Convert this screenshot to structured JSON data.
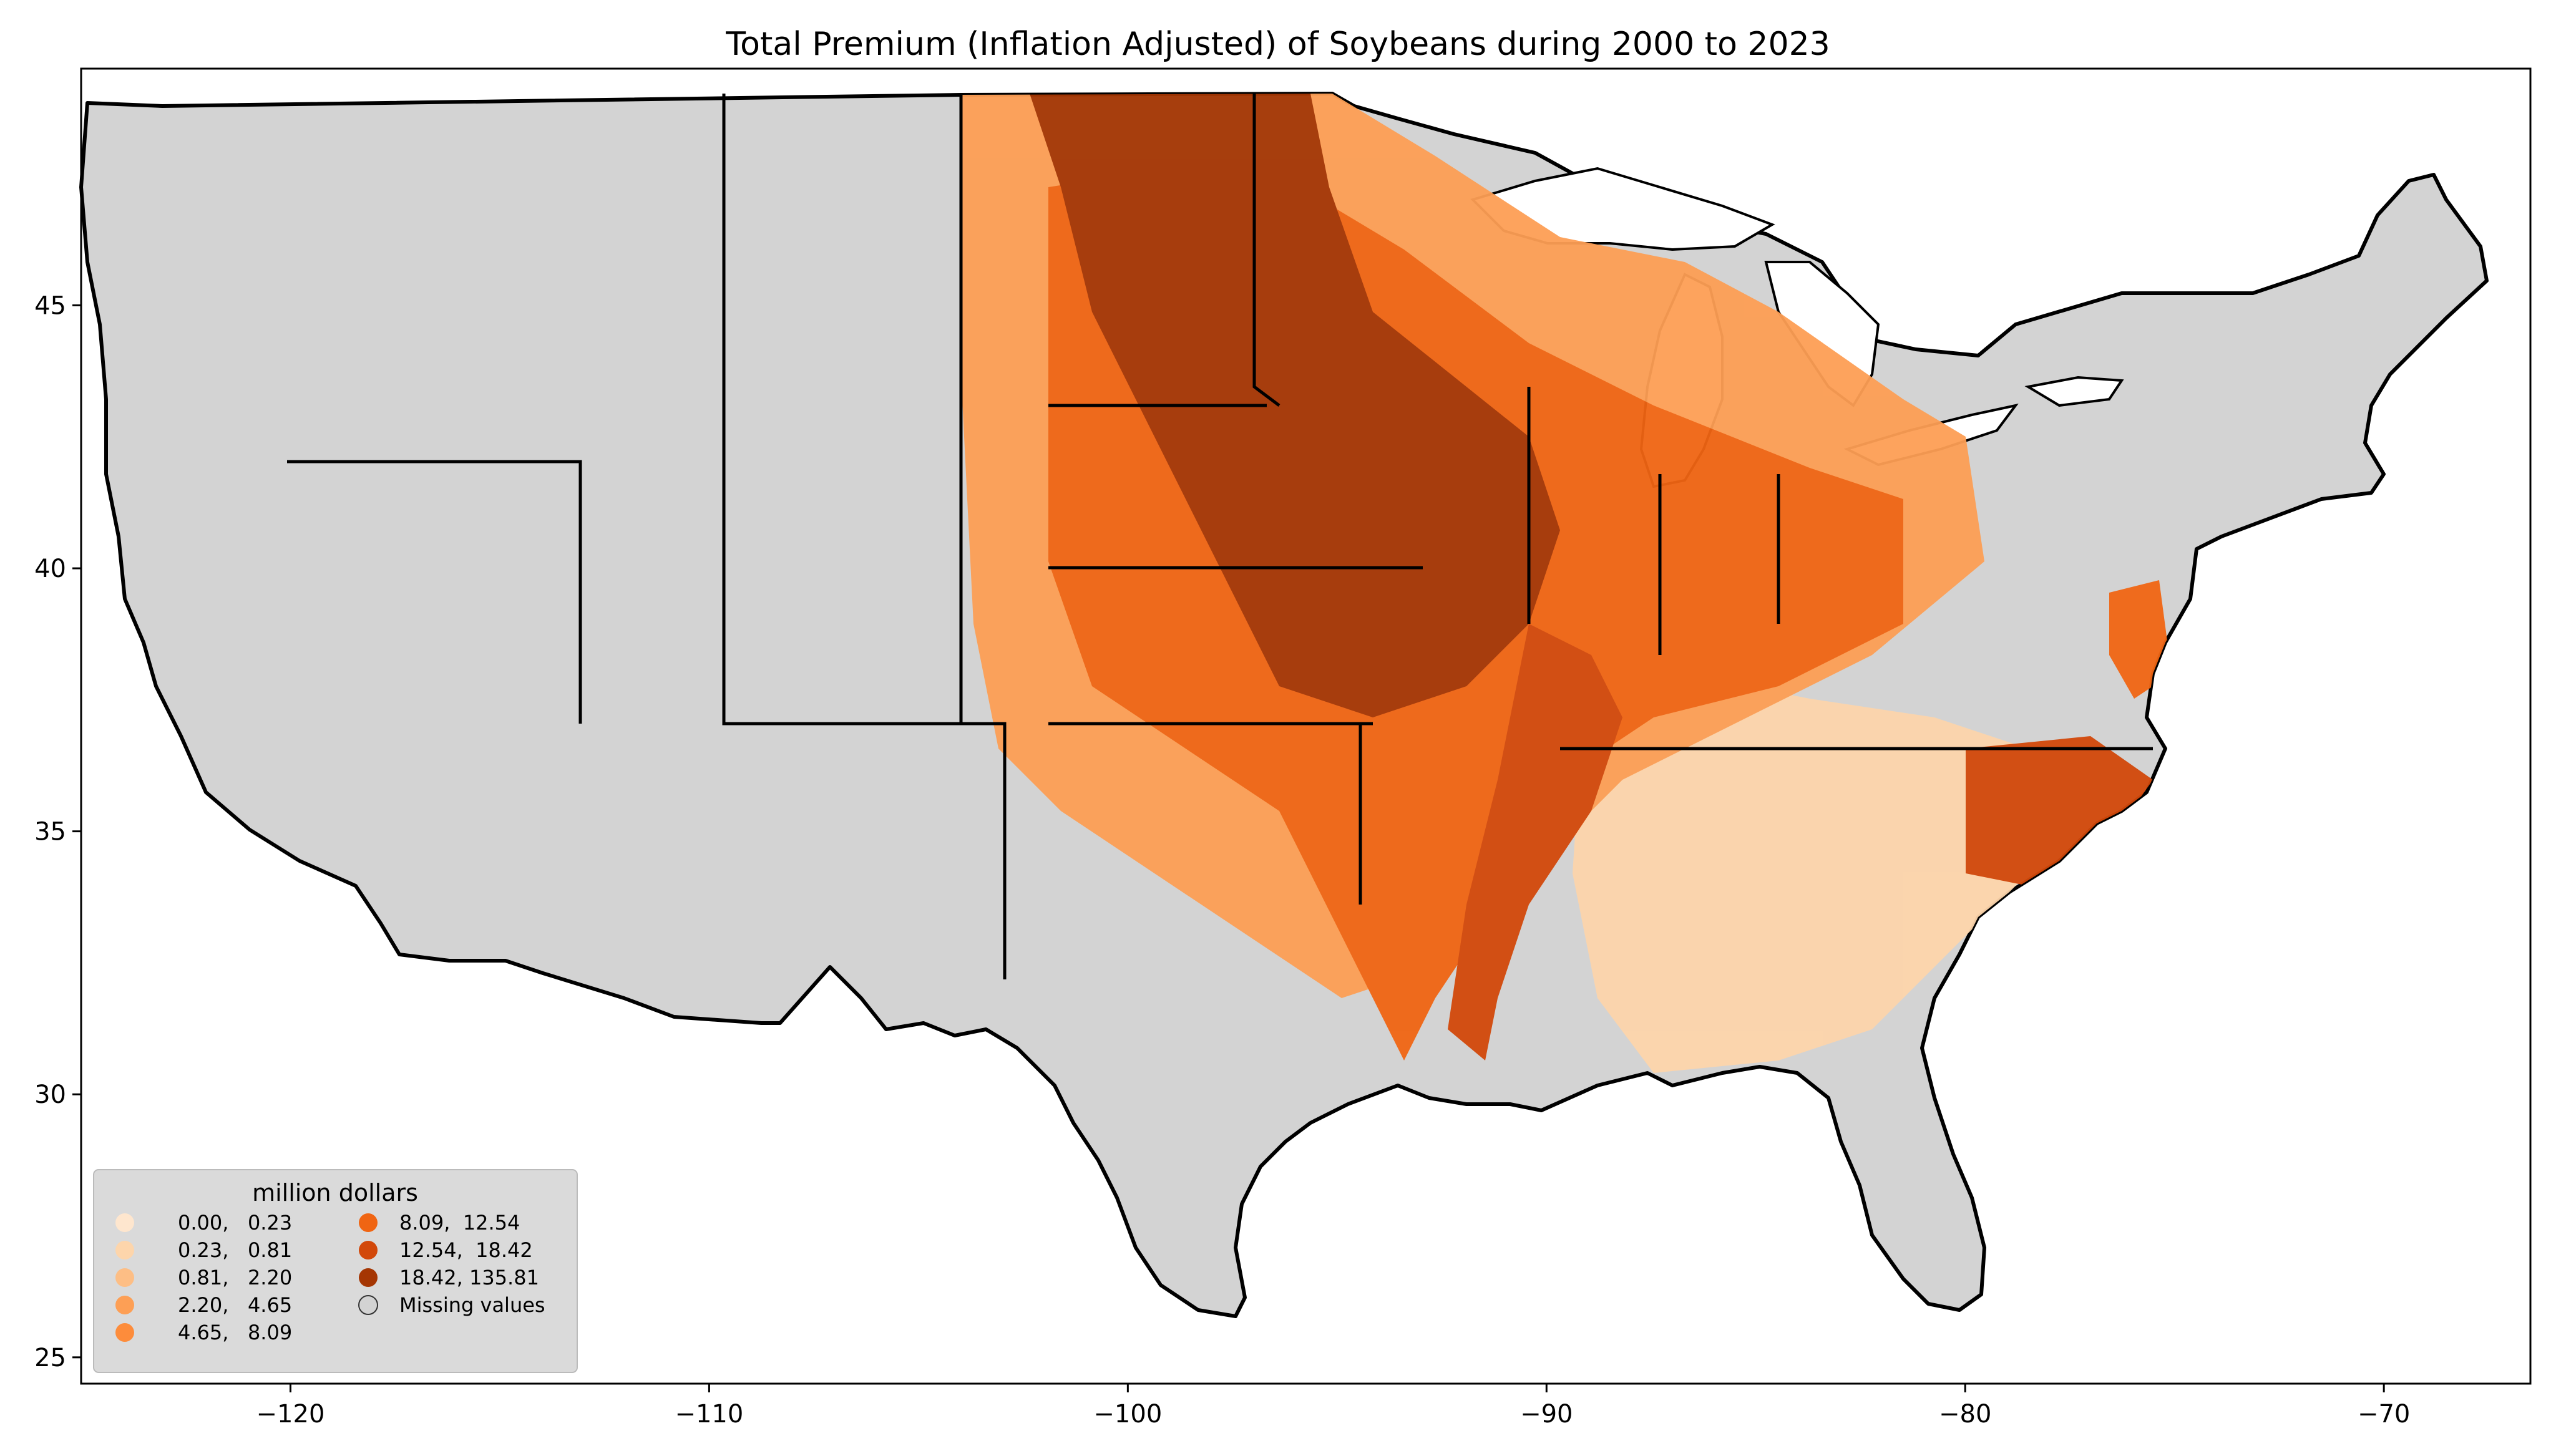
{
  "title": "Total  Premium  (Inflation Adjusted) of Soybeans during 2000 to 2023",
  "map": {
    "lon_range": [
      -125,
      -66.5
    ],
    "lat_range": [
      24.5,
      49.5
    ],
    "x_ticks": [
      "−120",
      "−110",
      "−100",
      "−90",
      "−80",
      "−70"
    ],
    "x_tick_values": [
      -120,
      -110,
      -100,
      -90,
      -80,
      -70
    ],
    "y_ticks": [
      "25",
      "30",
      "35",
      "40",
      "45"
    ],
    "y_tick_values": [
      25,
      30,
      35,
      40,
      45
    ],
    "missing_color": "#d3d3d3",
    "border_color": "#000000"
  },
  "legend": {
    "title": "million dollars",
    "position": "lower-left",
    "items": [
      {
        "label": "0.00,   0.23",
        "color": "#fee6ce"
      },
      {
        "label": "0.23,   0.81",
        "color": "#fdd5ab"
      },
      {
        "label": "0.81,   2.20",
        "color": "#fdbe85"
      },
      {
        "label": "2.20,   4.65",
        "color": "#fd9f55"
      },
      {
        "label": "4.65,   8.09",
        "color": "#fd8c3b"
      },
      {
        "label": "8.09,  12.54",
        "color": "#f06513"
      },
      {
        "label": "12.54,  18.42",
        "color": "#d2480a"
      },
      {
        "label": "18.42, 135.81",
        "color": "#a53603"
      },
      {
        "label": "Missing values",
        "color": "#d3d3d3"
      }
    ]
  }
}
